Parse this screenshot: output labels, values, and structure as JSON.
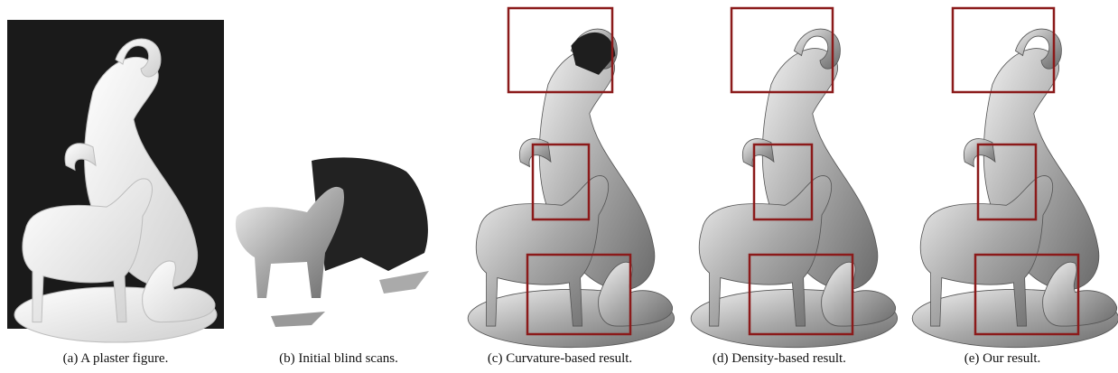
{
  "figure": {
    "panels": [
      {
        "label": "(a)",
        "caption": "A plaster figure."
      },
      {
        "label": "(b)",
        "caption": "Initial blind scans."
      },
      {
        "label": "(c)",
        "caption": "Curvature-based result."
      },
      {
        "label": "(d)",
        "caption": "Density-based result."
      },
      {
        "label": "(e)",
        "caption": "Our result."
      }
    ]
  }
}
